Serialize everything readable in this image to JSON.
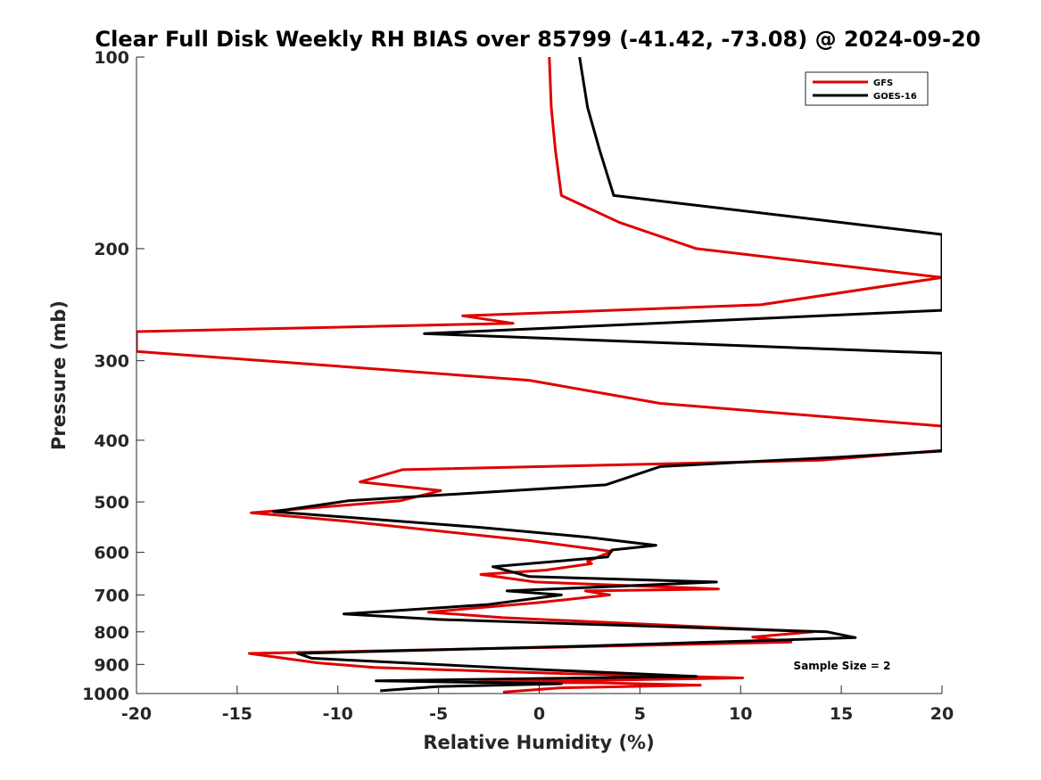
{
  "chart_data": {
    "type": "line",
    "title": "Clear Full Disk Weekly RH BIAS over 85799 (-41.42, -73.08) @ 2024-09-20",
    "xlabel": "Relative Humidity (%)",
    "ylabel": "Pressure (mb)",
    "xlim": [
      -20,
      20
    ],
    "ylim": [
      100,
      1000
    ],
    "y_scale": "log",
    "y_reversed": true,
    "x_ticks": [
      -20,
      -15,
      -10,
      -5,
      0,
      5,
      10,
      15,
      20
    ],
    "x_tick_labels": [
      "-20",
      "-15",
      "-10",
      "-5",
      "0",
      "5",
      "10",
      "15",
      "20"
    ],
    "y_ticks": [
      100,
      200,
      300,
      400,
      500,
      600,
      700,
      800,
      900,
      1000
    ],
    "y_tick_labels": [
      "100",
      "200",
      "300",
      "400",
      "500",
      "600",
      "700",
      "800",
      "900",
      "1000"
    ],
    "grid": false,
    "legend_position": "top-right",
    "annotation": "Sample Size = 2",
    "series": [
      {
        "name": "GFS",
        "color": "#e00000",
        "x": [
          0.5,
          0.6,
          0.8,
          1.1,
          4.0,
          7.8,
          20,
          11,
          -3.8,
          -1.3,
          -20,
          -20,
          -0.5,
          6.0,
          20,
          20,
          14.0,
          -6.8,
          -8.9,
          -4.9,
          -6.9,
          -14.3,
          -9.6,
          -0.5,
          3.6,
          2.4,
          2.6,
          0.3,
          -2.9,
          -0.2,
          8.9,
          2.3,
          3.5,
          -0.1,
          -5.5,
          -1.8,
          13.6,
          10.6,
          12.5,
          1.5,
          -14.4,
          -11.0,
          -8.2,
          1.0,
          10.1,
          -3.0,
          3.0,
          8.0,
          1.0,
          -1.8
        ],
        "y": [
          100,
          120,
          140,
          165,
          182,
          200,
          222,
          245,
          255,
          262,
          270,
          290,
          322,
          350,
          380,
          415,
          430,
          445,
          465,
          480,
          498,
          520,
          536,
          575,
          598,
          620,
          625,
          640,
          650,
          668,
          685,
          690,
          700,
          720,
          745,
          760,
          800,
          815,
          830,
          845,
          865,
          895,
          910,
          930,
          945,
          960,
          962,
          970,
          980,
          995
        ]
      },
      {
        "name": "GOES-16",
        "color": "#000000",
        "x": [
          2.0,
          2.4,
          3.0,
          3.7,
          20,
          20,
          -5.7,
          20,
          20,
          15,
          10,
          6.0,
          3.3,
          -9.5,
          -13.2,
          -3.0,
          2.4,
          5.8,
          3.6,
          3.4,
          -2.3,
          -0.5,
          8.8,
          -1.6,
          1.1,
          -2.6,
          -9.7,
          -5.0,
          14.3,
          15.7,
          2.3,
          -12.0,
          -11.3,
          -0.6,
          7.8,
          -8.1,
          1.1,
          -5.0,
          -7.9
        ],
        "y": [
          100,
          120,
          140,
          165,
          190,
          250,
          272,
          292,
          416,
          425,
          433,
          440,
          470,
          498,
          518,
          548,
          568,
          585,
          595,
          610,
          632,
          655,
          668,
          690,
          700,
          725,
          750,
          765,
          800,
          817,
          842,
          865,
          880,
          915,
          940,
          955,
          965,
          975,
          990
        ]
      }
    ]
  }
}
